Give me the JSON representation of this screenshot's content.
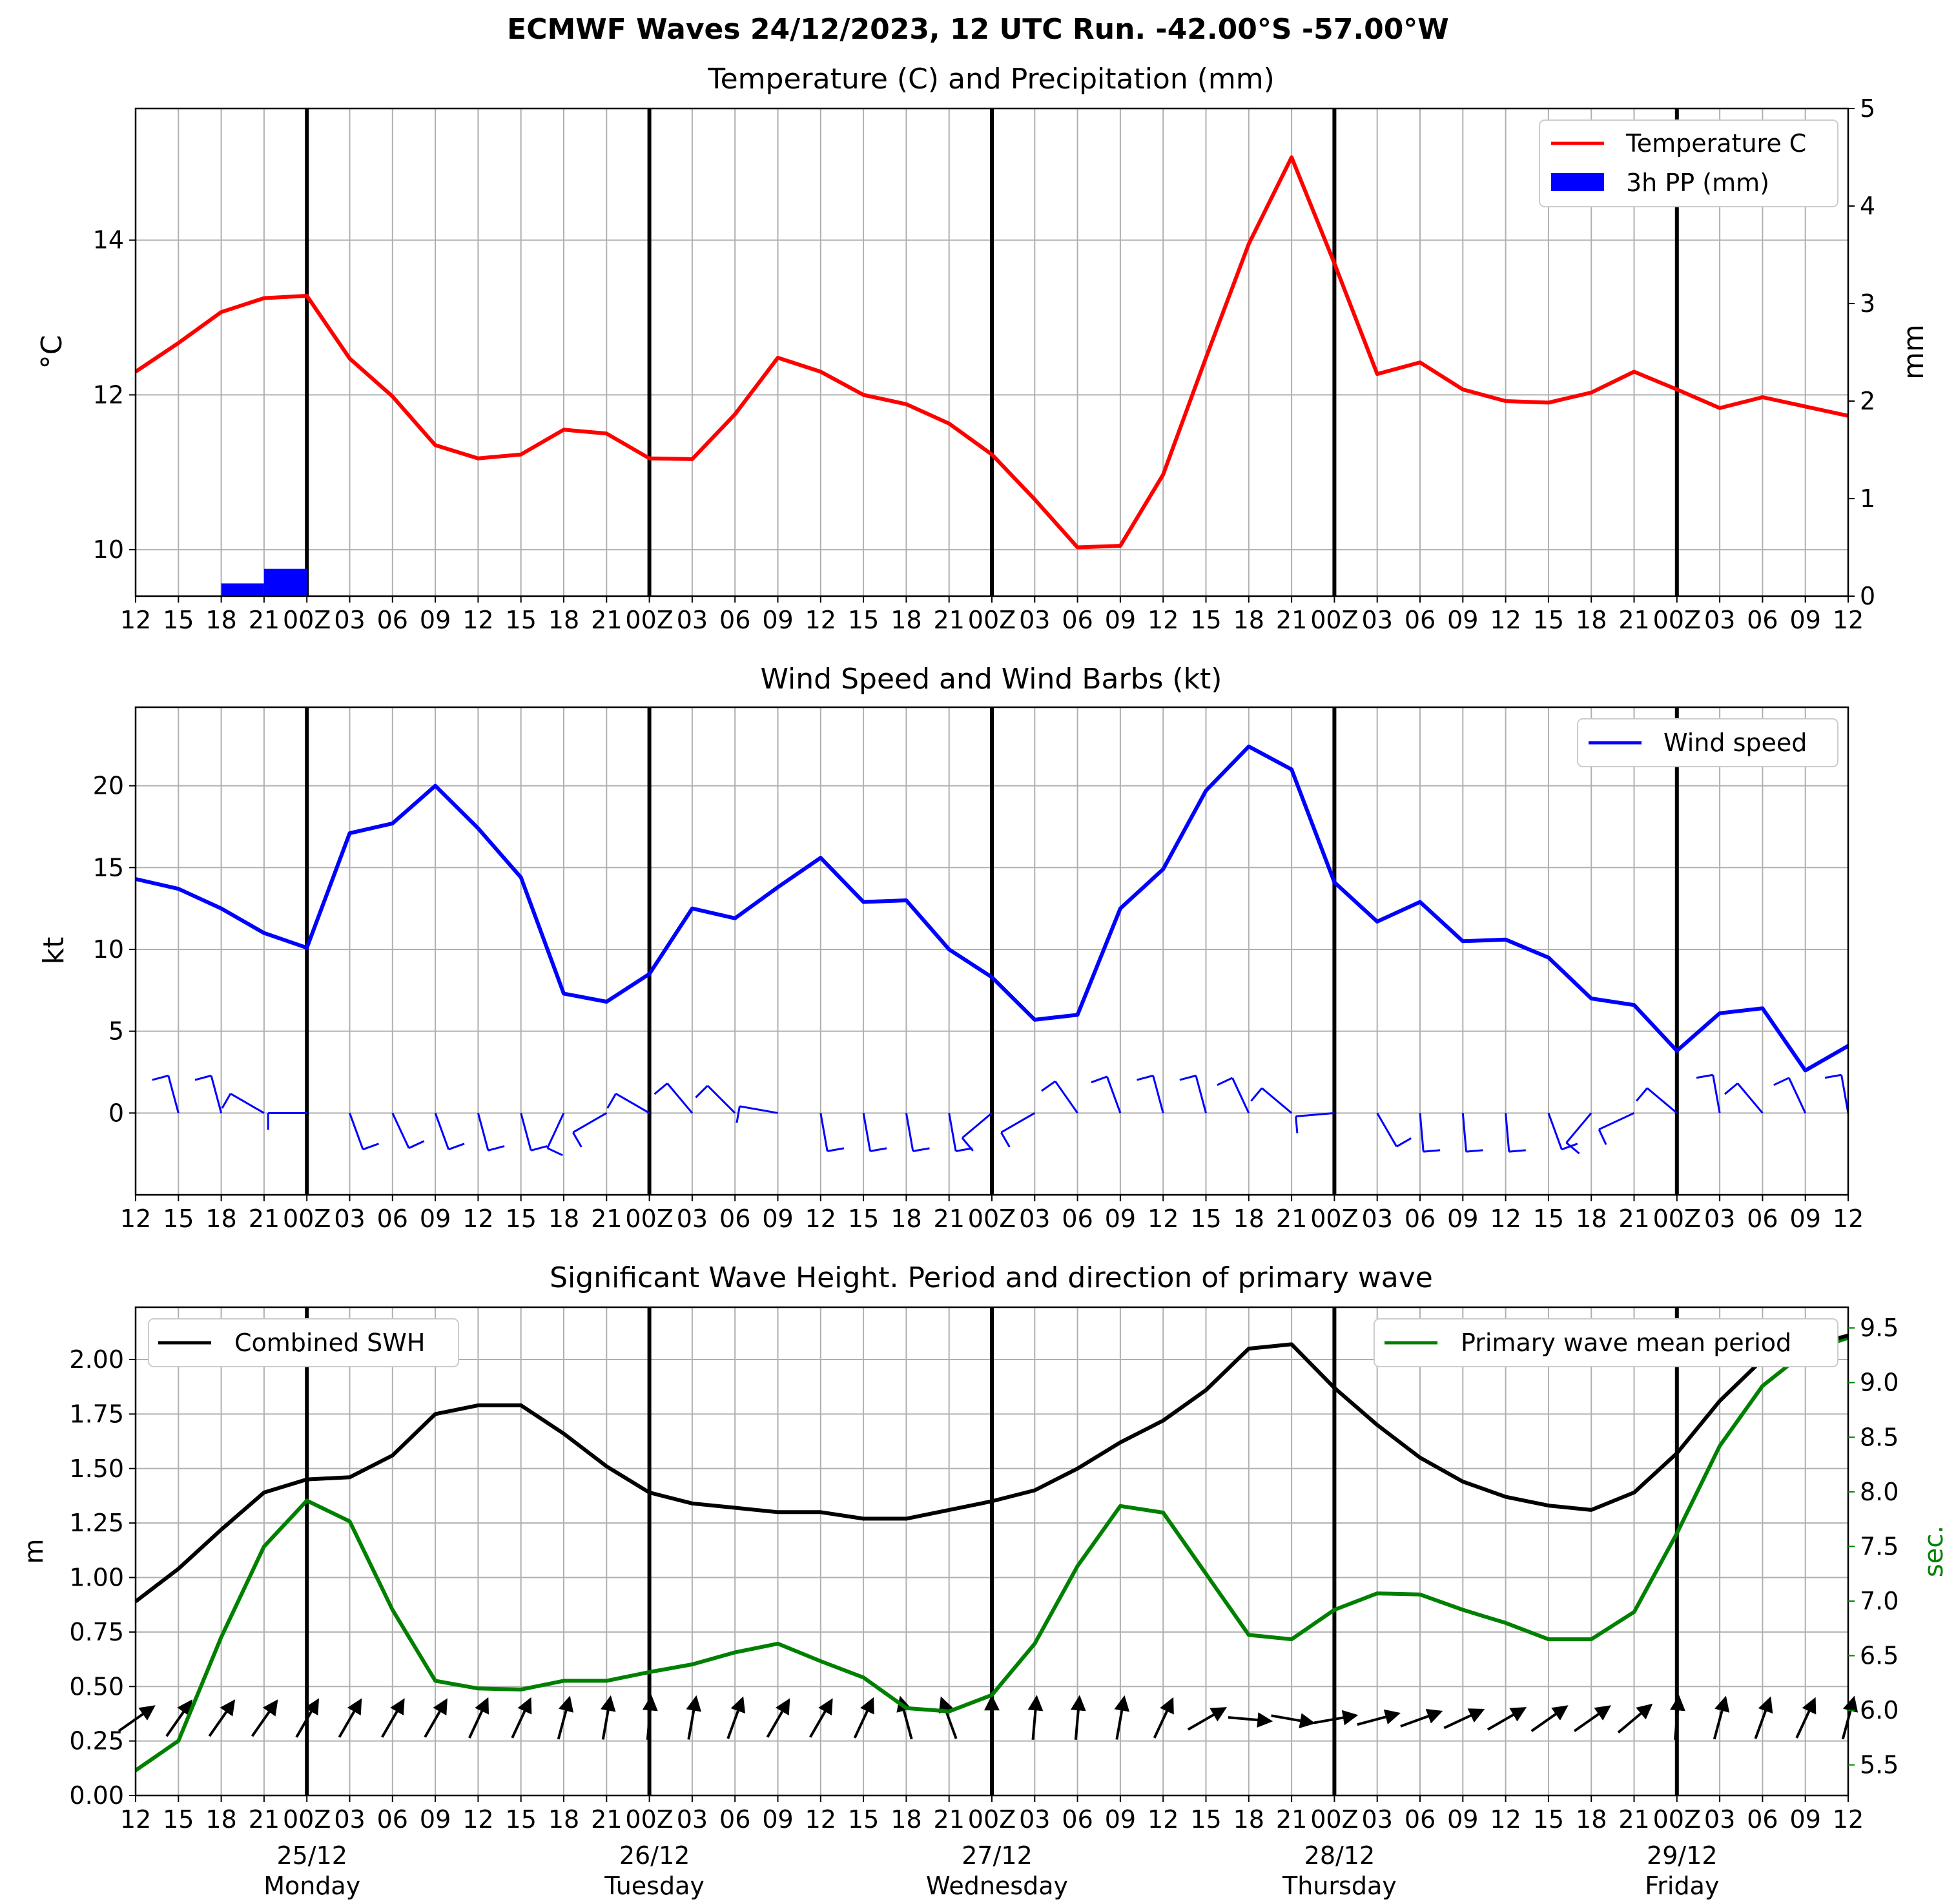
{
  "suptitle": "ECMWF Waves 24/12/2023, 12 UTC Run. -42.00°S -57.00°W",
  "x_tick_labels": [
    "12",
    "15",
    "18",
    "21",
    "00Z",
    "03",
    "06",
    "09",
    "12",
    "15",
    "18",
    "21",
    "00Z",
    "03",
    "06",
    "09",
    "12",
    "15",
    "18",
    "21",
    "00Z",
    "03",
    "06",
    "09",
    "12",
    "15",
    "18",
    "21",
    "00Z",
    "03",
    "06",
    "09",
    "12",
    "15",
    "18",
    "21",
    "00Z",
    "03",
    "06",
    "09",
    "12"
  ],
  "day_labels": [
    {
      "index": 4,
      "date": "25/12",
      "day": "Monday"
    },
    {
      "index": 12,
      "date": "26/12",
      "day": "Tuesday"
    },
    {
      "index": 20,
      "date": "27/12",
      "day": "Wednesday"
    },
    {
      "index": 28,
      "date": "28/12",
      "day": "Thursday"
    },
    {
      "index": 36,
      "date": "29/12",
      "day": "Friday"
    }
  ],
  "colors": {
    "temperature": "#ff0000",
    "precip": "#0000ff",
    "wind": "#0000ff",
    "swh": "#000000",
    "period": "#008000",
    "grid": "#b0b0b0"
  },
  "chart_data": [
    {
      "type": "line",
      "title": "Temperature (C) and Precipitation (mm)",
      "ylabel": "$^\\circ$C",
      "ylabel_display": "°C",
      "ylabel_right": "mm",
      "ylim": [
        9.4,
        15.7
      ],
      "ylim_right": [
        0,
        5
      ],
      "yticks": [
        10,
        12,
        14
      ],
      "yticks_right": [
        0,
        1,
        2,
        3,
        4,
        5
      ],
      "grid": true,
      "legend_position": "top-right",
      "series": [
        {
          "name": "Temperature C",
          "color": "#ff0000",
          "type": "line",
          "values": [
            12.3,
            12.67,
            13.07,
            13.25,
            13.28,
            12.47,
            11.98,
            11.35,
            11.18,
            11.23,
            11.55,
            11.5,
            11.18,
            11.17,
            11.75,
            12.48,
            12.3,
            12.0,
            11.88,
            11.63,
            11.23,
            10.65,
            10.03,
            10.05,
            10.97,
            12.48,
            13.95,
            15.07,
            13.7,
            12.27,
            12.42,
            12.07,
            11.92,
            11.9,
            12.03,
            12.3,
            12.07,
            11.83,
            11.97,
            11.85,
            11.73
          ]
        },
        {
          "name": "3h PP (mm)",
          "color": "#0000ff",
          "type": "bar",
          "values": [
            0,
            0,
            0,
            0.13,
            0.28,
            0,
            0,
            0,
            0,
            0,
            0,
            0,
            0,
            0,
            0,
            0,
            0,
            0,
            0,
            0,
            0,
            0,
            0,
            0,
            0,
            0,
            0,
            0,
            0,
            0,
            0,
            0,
            0,
            0,
            0,
            0,
            0,
            0,
            0,
            0,
            0
          ]
        }
      ]
    },
    {
      "type": "line",
      "title": "Wind Speed and Wind Barbs (kt)",
      "ylabel": "kt",
      "ylim": [
        -5,
        24.8
      ],
      "yticks": [
        0,
        5,
        10,
        15,
        20
      ],
      "grid": true,
      "legend_position": "top-right",
      "series": [
        {
          "name": "Wind speed",
          "color": "#0000ff",
          "values": [
            14.3,
            13.7,
            12.5,
            11.0,
            10.1,
            17.1,
            17.7,
            20.0,
            17.4,
            14.4,
            7.3,
            6.8,
            8.5,
            12.5,
            11.9,
            13.8,
            15.6,
            12.9,
            13.0,
            10.0,
            8.3,
            5.7,
            6.0,
            12.5,
            14.9,
            19.7,
            22.4,
            21.0,
            14.1,
            11.7,
            12.9,
            10.5,
            10.6,
            9.5,
            7.0,
            6.6,
            3.8,
            6.1,
            6.4,
            2.6,
            4.1
          ]
        }
      ],
      "wind_barbs": {
        "y": 0,
        "rows": "upper barbs drawn above y=0 for even steps, lower barbs below for southerly flow",
        "barb_angle_deg": [
          -20,
          -15,
          -15,
          -60,
          -90,
          160,
          155,
          160,
          165,
          165,
          -155,
          -120,
          -60,
          -40,
          -45,
          -80,
          170,
          170,
          170,
          170,
          -130,
          -120,
          -35,
          -20,
          -15,
          -15,
          -25,
          -50,
          -95,
          150,
          175,
          175,
          175,
          160,
          -140,
          -115,
          -50,
          -10,
          -40,
          -25,
          -10
        ]
      }
    },
    {
      "type": "line",
      "title": "Significant Wave Height. Period and direction of primary wave",
      "ylabel": "m",
      "ylabel_right": "sec.",
      "ylim": [
        0,
        2.24
      ],
      "ylim_right": [
        5.22,
        9.69
      ],
      "yticks": [
        0.0,
        0.25,
        0.5,
        0.75,
        1.0,
        1.25,
        1.5,
        1.75,
        2.0
      ],
      "ytick_labels": [
        "0.00",
        "0.25",
        "0.50",
        "0.75",
        "1.00",
        "1.25",
        "1.50",
        "1.75",
        "2.00"
      ],
      "yticks_right": [
        5.5,
        6.0,
        6.5,
        7.0,
        7.5,
        8.0,
        8.5,
        9.0,
        9.5
      ],
      "ytick_labels_right": [
        "5.5",
        "6.0",
        "6.5",
        "7.0",
        "7.5",
        "8.0",
        "8.5",
        "9.0",
        "9.5"
      ],
      "grid": true,
      "series": [
        {
          "name": "Combined SWH",
          "color": "#000000",
          "axis": "left",
          "legend_position": "top-left",
          "values": [
            0.89,
            1.04,
            1.22,
            1.39,
            1.45,
            1.46,
            1.56,
            1.75,
            1.79,
            1.79,
            1.66,
            1.51,
            1.39,
            1.34,
            1.32,
            1.3,
            1.3,
            1.27,
            1.27,
            1.31,
            1.35,
            1.4,
            1.5,
            1.62,
            1.72,
            1.86,
            2.05,
            2.07,
            1.87,
            1.7,
            1.55,
            1.44,
            1.37,
            1.33,
            1.31,
            1.39,
            1.57,
            1.81,
            2.0,
            2.06,
            2.11
          ]
        },
        {
          "name": "Primary wave mean period",
          "color": "#008000",
          "axis": "right",
          "legend_position": "top-right",
          "values": [
            5.45,
            5.72,
            6.67,
            7.5,
            7.92,
            7.73,
            6.92,
            6.27,
            6.2,
            6.19,
            6.27,
            6.27,
            6.35,
            6.42,
            6.53,
            6.61,
            6.45,
            6.3,
            6.02,
            5.99,
            6.14,
            6.61,
            7.32,
            7.87,
            7.81,
            7.25,
            6.69,
            6.65,
            6.92,
            7.07,
            7.06,
            6.92,
            6.8,
            6.65,
            6.65,
            6.9,
            7.62,
            8.42,
            8.97,
            9.28,
            9.41
          ]
        }
      ],
      "wave_direction_arrows": {
        "y": 0.35,
        "color": "#000000",
        "angle_deg": [
          35,
          55,
          55,
          55,
          60,
          60,
          60,
          60,
          65,
          65,
          75,
          80,
          85,
          80,
          70,
          60,
          60,
          65,
          105,
          110,
          90,
          85,
          85,
          80,
          65,
          30,
          -5,
          -10,
          10,
          15,
          20,
          25,
          30,
          35,
          35,
          40,
          85,
          75,
          70,
          65,
          75
        ]
      }
    }
  ]
}
